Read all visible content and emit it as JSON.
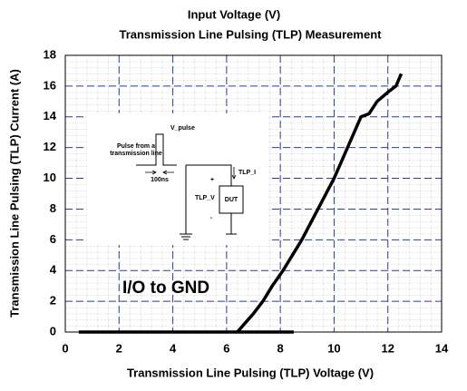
{
  "chart_data": {
    "type": "line",
    "title": "Input Voltage (V)",
    "subtitle": "Transmission Line Pulsing (TLP) Measurement",
    "x_label": "Transmission Line Pulsing (TLP) Voltage (V)",
    "y_label": "Transmission Line Pulsing (TLP) Current (A)",
    "annotation": "I/O to GND",
    "xlim": [
      0,
      14
    ],
    "xticks": [
      0,
      2,
      4,
      6,
      8,
      10,
      12,
      14
    ],
    "ylim": [
      0,
      18
    ],
    "yticks": [
      0,
      2,
      4,
      6,
      8,
      10,
      12,
      14,
      16,
      18
    ],
    "grid": true,
    "grid_color": "#2b3fa0",
    "series": [
      {
        "color": "#000000",
        "x": [
          0.5,
          8.5
        ],
        "values": [
          0,
          0
        ]
      },
      {
        "color": "#000000",
        "x": [
          6.4,
          6.7,
          7,
          7.35,
          7.7,
          8.1,
          8.8,
          9.4,
          10,
          10.5,
          11,
          11.3,
          11.6,
          12,
          12.3,
          12.5
        ],
        "values": [
          0,
          0.6,
          1.2,
          2,
          3,
          4,
          6,
          8,
          10,
          12,
          14,
          14.2,
          15,
          15.6,
          16,
          16.8
        ]
      }
    ]
  },
  "inset": {
    "v_pulse": "V_pulse",
    "pulse_label": [
      "Pulse from a",
      "transmission line"
    ],
    "width": "100ns",
    "current": "TLP_I",
    "voltage": "TLP_V",
    "device": "DUT",
    "plus": "+",
    "minus": "-"
  }
}
